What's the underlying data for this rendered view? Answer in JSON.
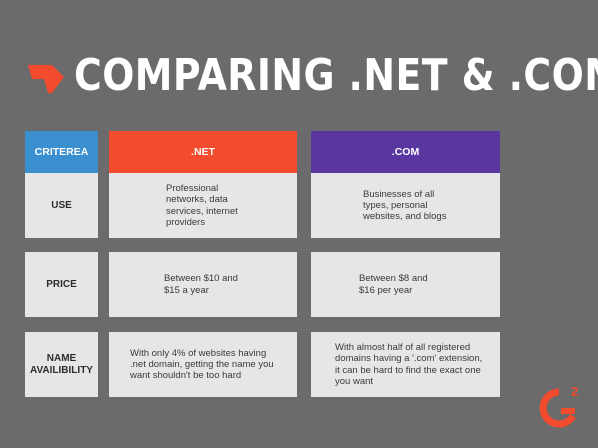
{
  "title": "COMPARING .NET & .COM",
  "colors": {
    "background": "#6b6b6b",
    "criterea_header": "#3a8fd0",
    "net_header": "#f24b2d",
    "com_header": "#5a36a0",
    "cell_background": "#e6e6e6"
  },
  "table": {
    "headers": {
      "criterea": "CRITEREA",
      "net": ".NET",
      "com": ".COM"
    },
    "rows": [
      {
        "label": "USE",
        "net": "Professional networks, data services, internet providers",
        "com": "Businesses of all types, personal websites, and blogs"
      },
      {
        "label": "PRICE",
        "net": "Between $10 and $15 a year",
        "com": "Between $8 and $16 per year"
      },
      {
        "label": "NAME AVAILIBILITY",
        "net": "With only 4% of websites having  .net domain, getting the name you want shouldn't be too hard",
        "com": "With almost half of all registered domains having a '.com' extension, it can be hard to find the exact one you want"
      }
    ]
  },
  "logo": {
    "main": "G",
    "superscript": "2"
  }
}
